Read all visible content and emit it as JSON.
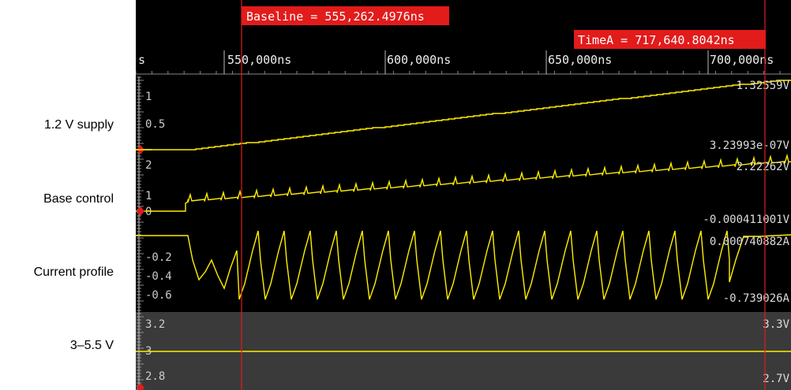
{
  "trace_labels": [
    "1.2 V supply",
    "Base control",
    "Current profile",
    "3–5.5 V"
  ],
  "ruler": {
    "partial_label": "s",
    "ticks": [
      "550,000ns",
      "600,000ns",
      "650,000ns",
      "700,000ns"
    ]
  },
  "cursors": {
    "baseline": {
      "label": "Baseline = 555,262.4976ns",
      "time_ns": 555262.4976
    },
    "timeA": {
      "label": "TimeA = 717,640.8042ns",
      "time_ns": 717640.8042
    }
  },
  "channels": {
    "supply": {
      "axis_ticks": [
        "1",
        "0.5"
      ],
      "max_value": "1.32559V",
      "min_value": "3.23993e-07V"
    },
    "base": {
      "axis_ticks": [
        "2",
        "1",
        "0"
      ],
      "max_value": "2.22262V",
      "min_value": "-0.000411001V"
    },
    "current": {
      "axis_ticks": [
        "-0.2",
        "-0.4",
        "-0.6"
      ],
      "max_value": "0.000740882A",
      "min_value": "-0.739026A"
    },
    "rail": {
      "axis_ticks": [
        "3.2",
        "3",
        "2.8"
      ],
      "max_value": "3.3V",
      "min_value": "2.7V",
      "level": 3.0
    }
  },
  "colors": {
    "trace": "#ffee00",
    "cursor": "#e21b1b",
    "background": "#000000",
    "rail_panel": "#3a3a3a",
    "axis": "#cccccc"
  }
}
